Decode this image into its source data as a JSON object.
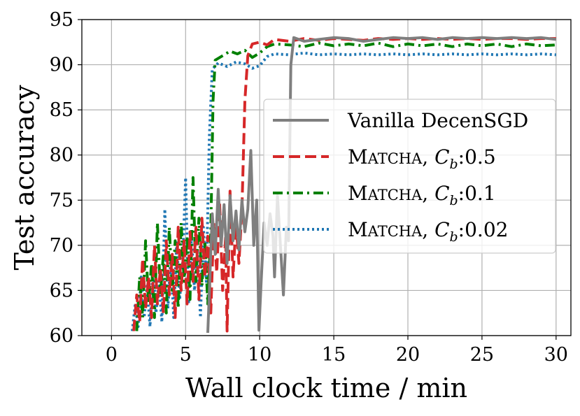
{
  "chart_data": {
    "type": "line",
    "xlabel": "Wall clock time / min",
    "ylabel": "Test accuracy",
    "xlim": [
      -2,
      31
    ],
    "ylim": [
      60,
      95
    ],
    "xticks": [
      0,
      5,
      10,
      15,
      20,
      25,
      30
    ],
    "yticks": [
      60,
      65,
      70,
      75,
      80,
      85,
      90,
      95
    ],
    "grid": true,
    "legend_position": "center-right",
    "series": [
      {
        "name": "Vanilla DecenSGD",
        "legend_main": "Vanilla DecenSGD",
        "legend_sc": "",
        "legend_sub": "",
        "legend_tail": "",
        "color": "#7f7f7f",
        "style": "solid",
        "points": [
          [
            6.5,
            60.3
          ],
          [
            6.8,
            73.5
          ],
          [
            7.0,
            69.0
          ],
          [
            7.2,
            76.2
          ],
          [
            7.4,
            70.0
          ],
          [
            7.6,
            74.5
          ],
          [
            7.8,
            68.0
          ],
          [
            8.0,
            75.5
          ],
          [
            8.2,
            70.5
          ],
          [
            8.4,
            73.8
          ],
          [
            8.6,
            69.5
          ],
          [
            8.8,
            75.0
          ],
          [
            9.0,
            71.5
          ],
          [
            9.2,
            74.0
          ],
          [
            9.4,
            80.5
          ],
          [
            9.6,
            70.0
          ],
          [
            9.8,
            75.0
          ],
          [
            9.95,
            60.6
          ],
          [
            10.1,
            66.0
          ],
          [
            10.3,
            72.5
          ],
          [
            10.5,
            70.0
          ],
          [
            10.7,
            73.5
          ],
          [
            10.9,
            71.0
          ],
          [
            11.0,
            66.5
          ],
          [
            11.2,
            75.5
          ],
          [
            11.4,
            70.0
          ],
          [
            11.6,
            64.5
          ],
          [
            11.8,
            72.0
          ],
          [
            11.95,
            70.5
          ],
          [
            12.1,
            90.0
          ],
          [
            12.3,
            93.0
          ],
          [
            13,
            92.6
          ],
          [
            14,
            92.8
          ],
          [
            15,
            93.0
          ],
          [
            16,
            92.9
          ],
          [
            17,
            92.6
          ],
          [
            18,
            92.8
          ],
          [
            19,
            93.0
          ],
          [
            20,
            92.9
          ],
          [
            21,
            93.0
          ],
          [
            22,
            92.8
          ],
          [
            23,
            93.0
          ],
          [
            24,
            92.9
          ],
          [
            25,
            93.0
          ],
          [
            26,
            92.9
          ],
          [
            27,
            93.0
          ],
          [
            28,
            92.9
          ],
          [
            29,
            93.0
          ],
          [
            30,
            92.8
          ]
        ]
      },
      {
        "name": "MATCHA, Cb:0.5",
        "legend_main": "M",
        "legend_sc": "ATCHA",
        "legend_sub": "b",
        "legend_tail": ":0.5",
        "color": "#d62728",
        "style": "dashed",
        "points": [
          [
            1.5,
            60.5
          ],
          [
            1.7,
            64.5
          ],
          [
            1.9,
            61.5
          ],
          [
            2.1,
            68.5
          ],
          [
            2.3,
            63.0
          ],
          [
            2.5,
            66.5
          ],
          [
            2.7,
            62.0
          ],
          [
            2.9,
            70.0
          ],
          [
            3.1,
            63.5
          ],
          [
            3.3,
            67.5
          ],
          [
            3.5,
            62.5
          ],
          [
            3.7,
            70.5
          ],
          [
            3.9,
            64.5
          ],
          [
            4.1,
            69.0
          ],
          [
            4.3,
            62.0
          ],
          [
            4.5,
            72.0
          ],
          [
            4.7,
            65.0
          ],
          [
            4.9,
            70.5
          ],
          [
            5.1,
            63.5
          ],
          [
            5.3,
            71.5
          ],
          [
            5.5,
            66.0
          ],
          [
            5.7,
            72.0
          ],
          [
            5.9,
            64.0
          ],
          [
            6.1,
            73.0
          ],
          [
            6.3,
            66.5
          ],
          [
            6.5,
            71.0
          ],
          [
            6.7,
            62.5
          ],
          [
            6.9,
            72.5
          ],
          [
            7.1,
            67.0
          ],
          [
            7.3,
            74.5
          ],
          [
            7.5,
            65.0
          ],
          [
            7.7,
            71.0
          ],
          [
            7.8,
            60.5
          ],
          [
            8.0,
            76.0
          ],
          [
            8.2,
            66.5
          ],
          [
            8.4,
            72.5
          ],
          [
            8.6,
            68.0
          ],
          [
            8.8,
            74.0
          ],
          [
            9.0,
            86.0
          ],
          [
            9.2,
            91.0
          ],
          [
            9.5,
            92.3
          ],
          [
            10,
            92.5
          ],
          [
            10.5,
            92.2
          ],
          [
            11,
            92.8
          ],
          [
            12,
            92.6
          ],
          [
            13,
            92.9
          ],
          [
            14,
            92.7
          ],
          [
            15,
            92.9
          ],
          [
            16,
            92.8
          ],
          [
            17,
            92.7
          ],
          [
            18,
            92.9
          ],
          [
            19,
            92.8
          ],
          [
            20,
            92.9
          ],
          [
            21,
            92.8
          ],
          [
            22,
            92.9
          ],
          [
            23,
            92.8
          ],
          [
            24,
            92.9
          ],
          [
            25,
            92.8
          ],
          [
            26,
            92.9
          ],
          [
            27,
            92.9
          ],
          [
            28,
            92.8
          ],
          [
            29,
            92.9
          ],
          [
            30,
            92.9
          ]
        ]
      },
      {
        "name": "MATCHA, Cb:0.1",
        "legend_main": "M",
        "legend_sc": "ATCHA",
        "legend_sub": "b",
        "legend_tail": ":0.1",
        "color": "#008000",
        "style": "dashdot",
        "points": [
          [
            1.7,
            60.5
          ],
          [
            1.9,
            66.5
          ],
          [
            2.1,
            62.0
          ],
          [
            2.3,
            70.5
          ],
          [
            2.5,
            63.5
          ],
          [
            2.7,
            68.0
          ],
          [
            2.9,
            62.0
          ],
          [
            3.1,
            72.5
          ],
          [
            3.3,
            64.5
          ],
          [
            3.5,
            69.0
          ],
          [
            3.7,
            62.5
          ],
          [
            3.9,
            72.0
          ],
          [
            4.1,
            65.0
          ],
          [
            4.3,
            70.5
          ],
          [
            4.5,
            63.0
          ],
          [
            4.7,
            72.5
          ],
          [
            4.9,
            66.0
          ],
          [
            5.1,
            71.0
          ],
          [
            5.3,
            64.0
          ],
          [
            5.5,
            77.5
          ],
          [
            5.7,
            66.0
          ],
          [
            5.9,
            73.0
          ],
          [
            6.1,
            65.5
          ],
          [
            6.3,
            70.5
          ],
          [
            6.5,
            63.5
          ],
          [
            6.7,
            71.5
          ],
          [
            6.85,
            86.0
          ],
          [
            7.0,
            90.5
          ],
          [
            7.5,
            91.0
          ],
          [
            8,
            91.5
          ],
          [
            8.5,
            91.2
          ],
          [
            9,
            91.6
          ],
          [
            9.5,
            90.8
          ],
          [
            10,
            91.3
          ],
          [
            10.5,
            92.0
          ],
          [
            11,
            92.3
          ],
          [
            12,
            92.2
          ],
          [
            13,
            92.0
          ],
          [
            14,
            92.4
          ],
          [
            15,
            92.1
          ],
          [
            16,
            92.3
          ],
          [
            17,
            92.1
          ],
          [
            18,
            92.4
          ],
          [
            19,
            92.0
          ],
          [
            20,
            92.3
          ],
          [
            21,
            92.1
          ],
          [
            22,
            92.3
          ],
          [
            23,
            92.0
          ],
          [
            24,
            92.3
          ],
          [
            25,
            92.1
          ],
          [
            26,
            92.3
          ],
          [
            27,
            92.0
          ],
          [
            28,
            92.3
          ],
          [
            29,
            92.1
          ],
          [
            30,
            92.2
          ]
        ]
      },
      {
        "name": "MATCHA, Cb:0.02",
        "legend_main": "M",
        "legend_sc": "ATCHA",
        "legend_sub": "b",
        "legend_tail": ":0.02",
        "color": "#1f77b4",
        "style": "dotted",
        "points": [
          [
            1.4,
            60.5
          ],
          [
            1.6,
            63.5
          ],
          [
            1.8,
            61.0
          ],
          [
            2.0,
            66.5
          ],
          [
            2.2,
            62.0
          ],
          [
            2.4,
            65.5
          ],
          [
            2.6,
            61.0
          ],
          [
            2.8,
            67.5
          ],
          [
            3.0,
            62.5
          ],
          [
            3.2,
            66.0
          ],
          [
            3.4,
            61.5
          ],
          [
            3.6,
            74.0
          ],
          [
            3.8,
            63.0
          ],
          [
            4.0,
            68.5
          ],
          [
            4.2,
            62.0
          ],
          [
            4.4,
            70.5
          ],
          [
            4.6,
            64.0
          ],
          [
            4.8,
            68.0
          ],
          [
            5.0,
            77.5
          ],
          [
            5.2,
            63.5
          ],
          [
            5.4,
            71.0
          ],
          [
            5.6,
            65.0
          ],
          [
            5.8,
            69.5
          ],
          [
            6.0,
            62.0
          ],
          [
            6.2,
            72.0
          ],
          [
            6.4,
            66.0
          ],
          [
            6.6,
            82.0
          ],
          [
            6.8,
            89.5
          ],
          [
            7.2,
            90.2
          ],
          [
            7.8,
            89.8
          ],
          [
            8.4,
            90.3
          ],
          [
            9,
            90.1
          ],
          [
            9.5,
            89.6
          ],
          [
            10,
            89.9
          ],
          [
            10.5,
            90.9
          ],
          [
            11,
            91.2
          ],
          [
            12,
            91.1
          ],
          [
            13,
            91.3
          ],
          [
            14,
            91.1
          ],
          [
            15,
            91.2
          ],
          [
            16,
            91.1
          ],
          [
            17,
            91.2
          ],
          [
            18,
            91.1
          ],
          [
            19,
            91.2
          ],
          [
            20,
            91.1
          ],
          [
            21,
            91.2
          ],
          [
            22,
            91.1
          ],
          [
            23,
            91.2
          ],
          [
            24,
            91.1
          ],
          [
            25,
            91.2
          ],
          [
            26,
            91.1
          ],
          [
            27,
            91.2
          ],
          [
            28,
            91.1
          ],
          [
            29,
            91.2
          ],
          [
            30,
            91.1
          ]
        ]
      }
    ]
  }
}
